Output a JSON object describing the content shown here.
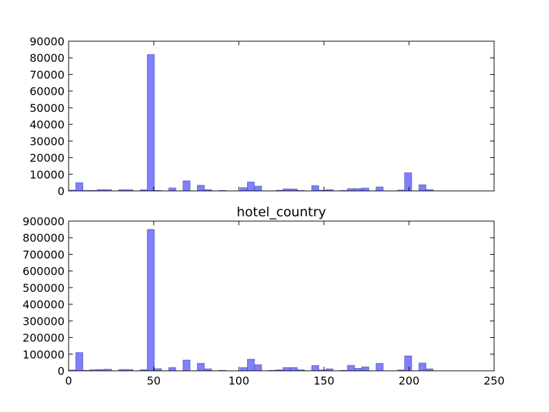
{
  "figure": {
    "bar_color": "#7f7fff",
    "bar_edge_color": "#333399",
    "bar_opacity": 0.5
  },
  "chart_data": [
    {
      "type": "bar",
      "title": "",
      "xlabel": "",
      "ylabel": "",
      "xlim": [
        0,
        250
      ],
      "ylim": [
        0,
        90000
      ],
      "xticks_visible": false,
      "yticks": [
        0,
        10000,
        20000,
        30000,
        40000,
        50000,
        60000,
        70000,
        80000,
        90000
      ],
      "bin_width": 4.2,
      "grid": false,
      "bins": [
        {
          "x": 0,
          "value": 500
        },
        {
          "x": 4.2,
          "value": 5000
        },
        {
          "x": 8.4,
          "value": 300
        },
        {
          "x": 12.6,
          "value": 300
        },
        {
          "x": 16.8,
          "value": 800
        },
        {
          "x": 21,
          "value": 800
        },
        {
          "x": 29.4,
          "value": 700
        },
        {
          "x": 33.6,
          "value": 700
        },
        {
          "x": 42,
          "value": 700
        },
        {
          "x": 46.2,
          "value": 82000
        },
        {
          "x": 50.4,
          "value": 300
        },
        {
          "x": 58.8,
          "value": 1800
        },
        {
          "x": 67.2,
          "value": 6100
        },
        {
          "x": 75.6,
          "value": 3400
        },
        {
          "x": 79.8,
          "value": 800
        },
        {
          "x": 88.2,
          "value": 300
        },
        {
          "x": 100.8,
          "value": 2000
        },
        {
          "x": 105,
          "value": 5400
        },
        {
          "x": 109.2,
          "value": 2900
        },
        {
          "x": 121.8,
          "value": 400
        },
        {
          "x": 126,
          "value": 1200
        },
        {
          "x": 130.2,
          "value": 1200
        },
        {
          "x": 134.4,
          "value": 300
        },
        {
          "x": 142.8,
          "value": 3200
        },
        {
          "x": 147,
          "value": 400
        },
        {
          "x": 151.2,
          "value": 800
        },
        {
          "x": 159.6,
          "value": 300
        },
        {
          "x": 163.8,
          "value": 1400
        },
        {
          "x": 168,
          "value": 1400
        },
        {
          "x": 172.2,
          "value": 1700
        },
        {
          "x": 180.6,
          "value": 2400
        },
        {
          "x": 193.2,
          "value": 500
        },
        {
          "x": 197.4,
          "value": 10900
        },
        {
          "x": 205.8,
          "value": 3700
        },
        {
          "x": 210,
          "value": 800
        }
      ]
    },
    {
      "type": "bar",
      "title": "hotel_country",
      "xlabel": "",
      "ylabel": "",
      "xlim": [
        0,
        250
      ],
      "ylim": [
        0,
        900000
      ],
      "xticks": [
        0,
        50,
        100,
        150,
        200,
        250
      ],
      "yticks": [
        0,
        100000,
        200000,
        300000,
        400000,
        500000,
        600000,
        700000,
        800000,
        900000
      ],
      "bin_width": 4.2,
      "grid": false,
      "bins": [
        {
          "x": 0,
          "value": 5000
        },
        {
          "x": 4.2,
          "value": 110000
        },
        {
          "x": 8.4,
          "value": 3000
        },
        {
          "x": 12.6,
          "value": 7000
        },
        {
          "x": 16.8,
          "value": 8000
        },
        {
          "x": 21,
          "value": 10000
        },
        {
          "x": 29.4,
          "value": 8000
        },
        {
          "x": 33.6,
          "value": 8000
        },
        {
          "x": 42,
          "value": 7000
        },
        {
          "x": 46.2,
          "value": 850000
        },
        {
          "x": 50.4,
          "value": 13000
        },
        {
          "x": 58.8,
          "value": 20000
        },
        {
          "x": 67.2,
          "value": 65000
        },
        {
          "x": 75.6,
          "value": 45000
        },
        {
          "x": 79.8,
          "value": 12000
        },
        {
          "x": 88.2,
          "value": 3000
        },
        {
          "x": 100.8,
          "value": 20000
        },
        {
          "x": 105,
          "value": 70000
        },
        {
          "x": 109.2,
          "value": 37000
        },
        {
          "x": 117.6,
          "value": 3000
        },
        {
          "x": 121.8,
          "value": 6000
        },
        {
          "x": 126,
          "value": 20000
        },
        {
          "x": 130.2,
          "value": 20000
        },
        {
          "x": 134.4,
          "value": 6000
        },
        {
          "x": 142.8,
          "value": 32000
        },
        {
          "x": 147,
          "value": 5000
        },
        {
          "x": 151.2,
          "value": 12000
        },
        {
          "x": 159.6,
          "value": 3000
        },
        {
          "x": 163.8,
          "value": 33000
        },
        {
          "x": 168,
          "value": 15000
        },
        {
          "x": 172.2,
          "value": 24000
        },
        {
          "x": 180.6,
          "value": 45000
        },
        {
          "x": 193.2,
          "value": 5000
        },
        {
          "x": 197.4,
          "value": 90000
        },
        {
          "x": 205.8,
          "value": 47000
        },
        {
          "x": 210,
          "value": 12000
        }
      ]
    }
  ]
}
